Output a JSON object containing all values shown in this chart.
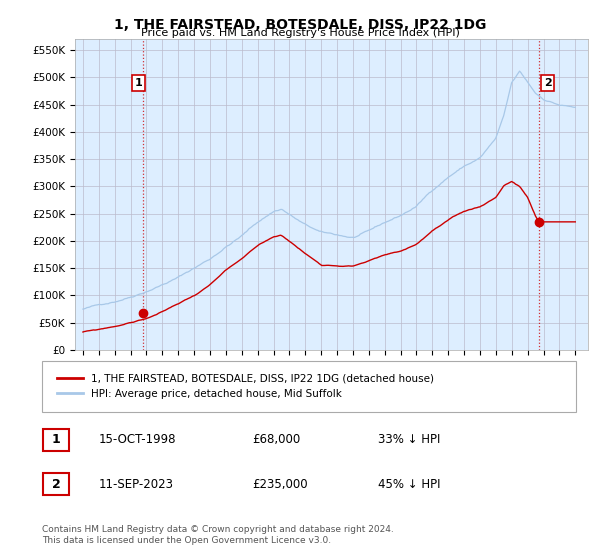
{
  "title": "1, THE FAIRSTEAD, BOTESDALE, DISS, IP22 1DG",
  "subtitle": "Price paid vs. HM Land Registry's House Price Index (HPI)",
  "sale1_date": "15-OCT-1998",
  "sale1_price": 68000,
  "sale1_label": "33% ↓ HPI",
  "sale1_x": 1998.79,
  "sale2_date": "11-SEP-2023",
  "sale2_price": 235000,
  "sale2_label": "45% ↓ HPI",
  "sale2_x": 2023.7,
  "hpi_color": "#a8c8e8",
  "price_color": "#cc0000",
  "marker_color": "#cc0000",
  "bg_color": "#ffffff",
  "chart_bg": "#ddeeff",
  "grid_color": "#bbbbcc",
  "legend_label1": "1, THE FAIRSTEAD, BOTESDALE, DISS, IP22 1DG (detached house)",
  "legend_label2": "HPI: Average price, detached house, Mid Suffolk",
  "footnote": "Contains HM Land Registry data © Crown copyright and database right 2024.\nThis data is licensed under the Open Government Licence v3.0.",
  "ylim": [
    0,
    570000
  ],
  "yticks": [
    0,
    50000,
    100000,
    150000,
    200000,
    250000,
    300000,
    350000,
    400000,
    450000,
    500000,
    550000
  ],
  "hpi_anchors_x": [
    1995,
    1996,
    1997,
    1998,
    1999,
    2000,
    2001,
    2002,
    2003,
    2004,
    2005,
    2006,
    2007,
    2007.5,
    2008,
    2009,
    2009.5,
    2010,
    2011,
    2012,
    2013,
    2014,
    2015,
    2016,
    2017,
    2018,
    2019,
    2020,
    2021,
    2021.5,
    2022,
    2022.5,
    2023,
    2023.5,
    2024,
    2025,
    2026
  ],
  "hpi_anchors_y": [
    75000,
    82000,
    90000,
    100000,
    112000,
    125000,
    138000,
    155000,
    172000,
    195000,
    215000,
    240000,
    260000,
    265000,
    255000,
    235000,
    228000,
    220000,
    215000,
    210000,
    220000,
    235000,
    248000,
    265000,
    295000,
    320000,
    340000,
    355000,
    390000,
    430000,
    490000,
    510000,
    490000,
    470000,
    460000,
    450000,
    445000
  ],
  "price_anchors_x": [
    1995,
    1996,
    1997,
    1998,
    1999,
    2000,
    2001,
    2002,
    2003,
    2004,
    2005,
    2006,
    2007,
    2007.5,
    2008,
    2009,
    2009.5,
    2010,
    2011,
    2012,
    2013,
    2014,
    2015,
    2016,
    2017,
    2018,
    2019,
    2020,
    2021,
    2021.5,
    2022,
    2022.5,
    2023,
    2023.5,
    2023.7,
    2024,
    2025,
    2026
  ],
  "price_anchors_y": [
    33000,
    37000,
    43000,
    50000,
    58000,
    70000,
    85000,
    100000,
    120000,
    145000,
    165000,
    188000,
    205000,
    208000,
    198000,
    175000,
    165000,
    155000,
    155000,
    155000,
    165000,
    175000,
    182000,
    195000,
    220000,
    238000,
    253000,
    262000,
    280000,
    302000,
    310000,
    300000,
    280000,
    245000,
    235000,
    235000,
    235000,
    235000
  ]
}
